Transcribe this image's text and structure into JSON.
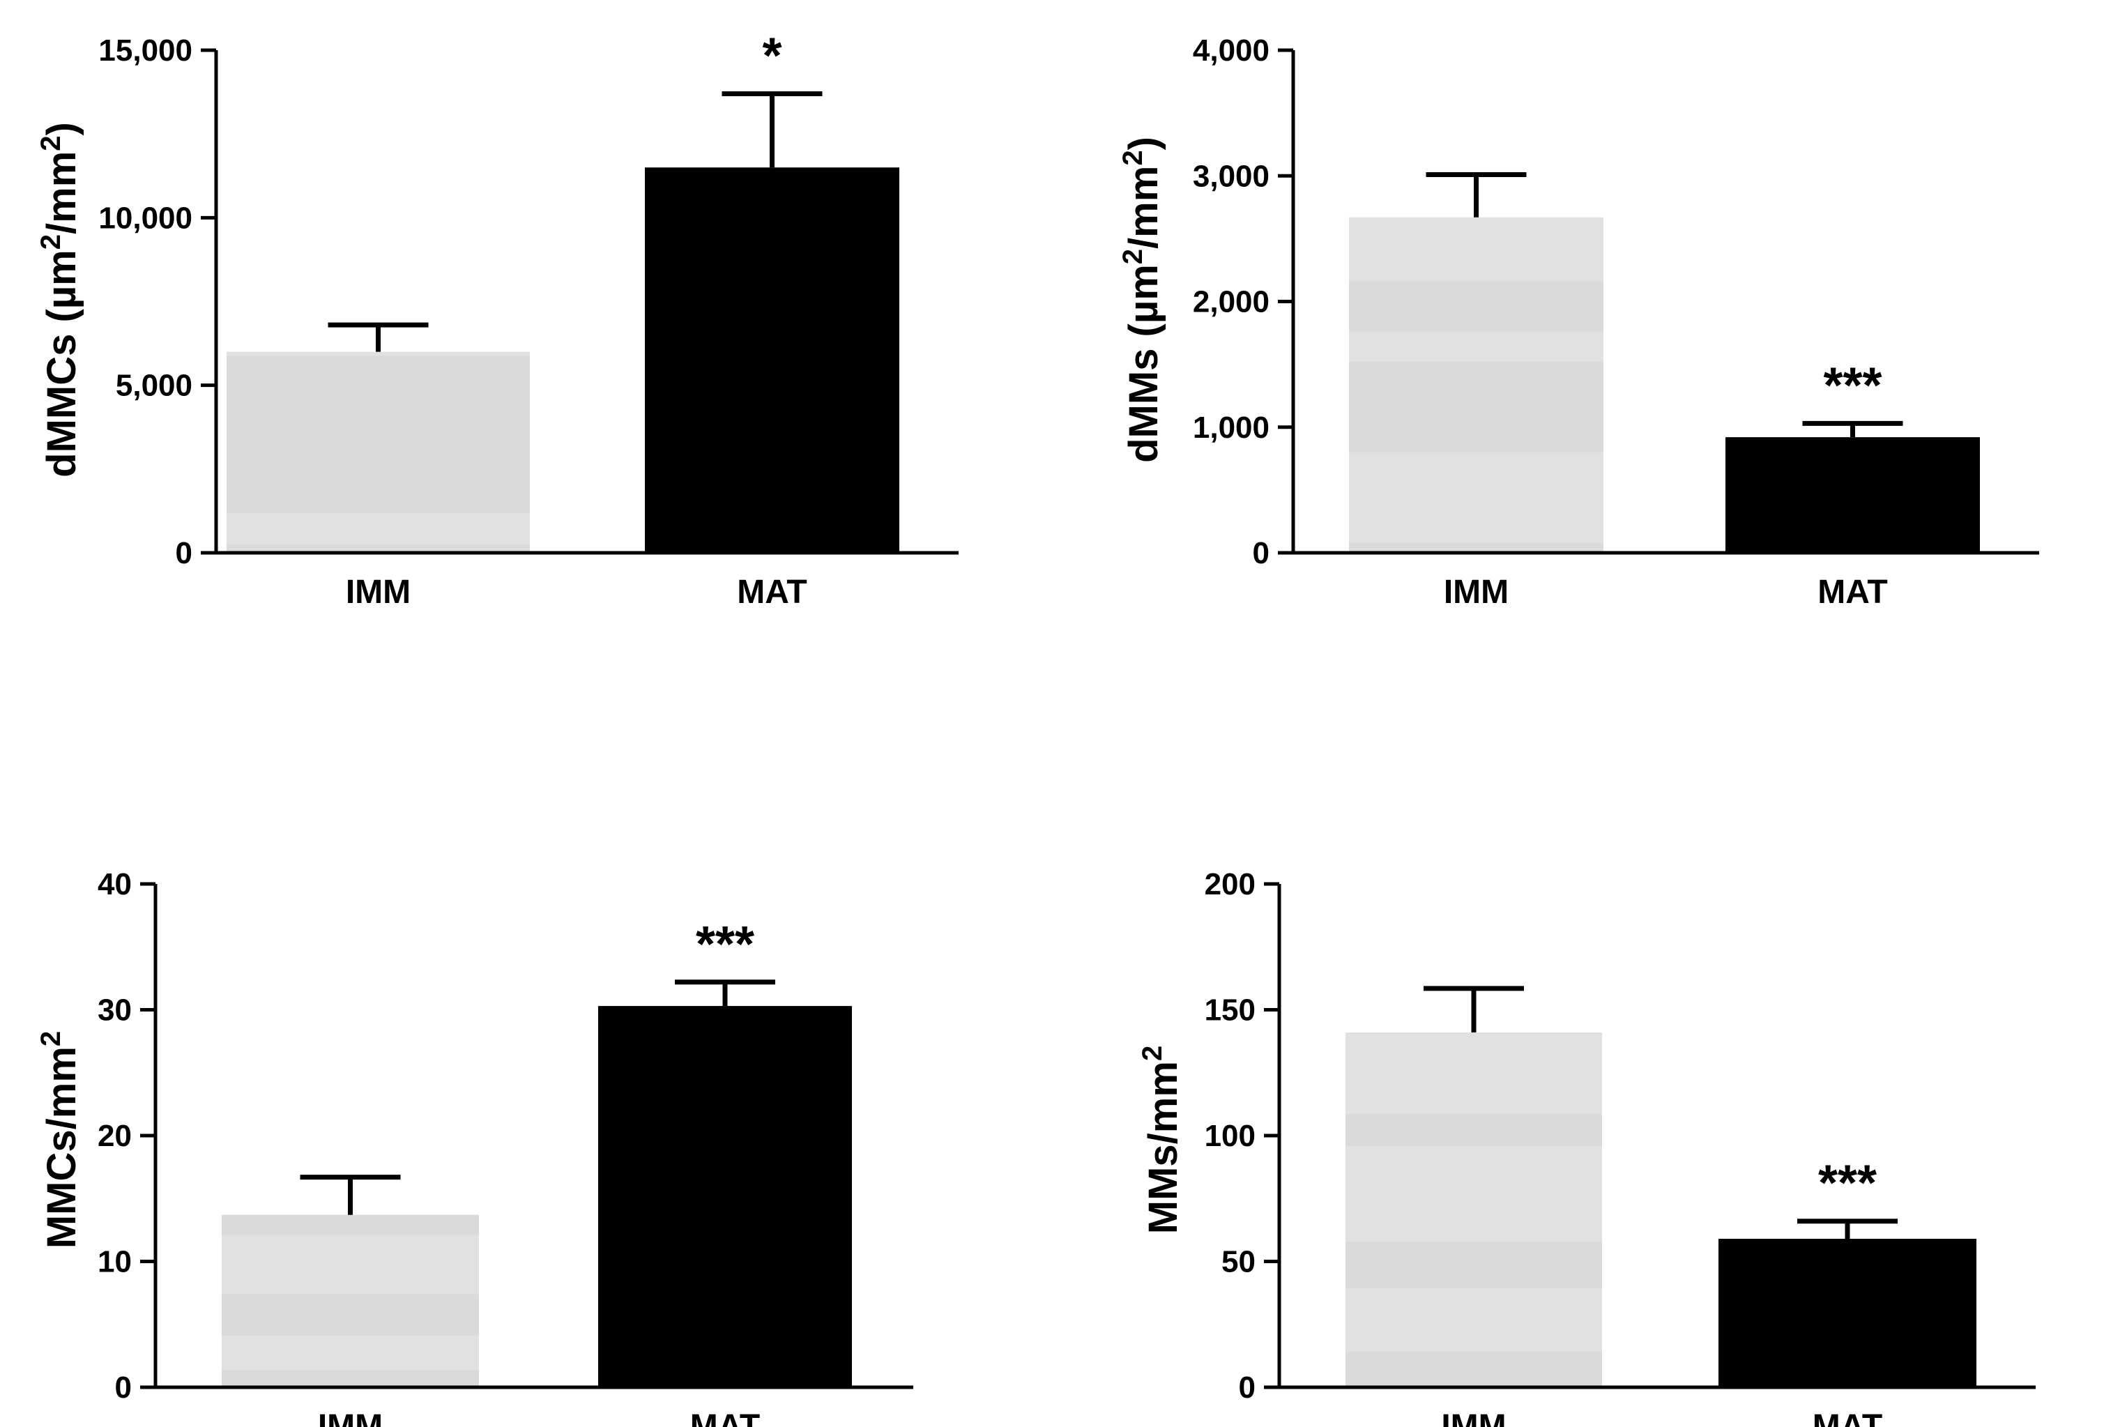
{
  "colors": {
    "imm_bar": "#e1e1e1",
    "imm_band": "#d5d5d5",
    "mat_bar": "#000000",
    "axis": "#000000"
  },
  "chart_data": [
    {
      "type": "bar",
      "categories": [
        "IMM",
        "MAT"
      ],
      "values": [
        6000,
        11500
      ],
      "errors": [
        800,
        2200
      ],
      "significance": [
        "",
        "*"
      ],
      "ylim": [
        0,
        15000
      ],
      "yticks": [
        0,
        5000,
        10000,
        15000
      ],
      "ytick_labels": [
        "0",
        "5,000",
        "10,000",
        "15,000"
      ],
      "ylabel_parts": [
        "dMMCs (µm",
        "2",
        "/mm",
        "2",
        ")"
      ],
      "xlabel": ""
    },
    {
      "type": "bar",
      "categories": [
        "IMM",
        "MAT"
      ],
      "values": [
        2670,
        920
      ],
      "errors": [
        340,
        110
      ],
      "significance": [
        "",
        "***"
      ],
      "ylim": [
        0,
        4000
      ],
      "yticks": [
        0,
        1000,
        2000,
        3000,
        4000
      ],
      "ytick_labels": [
        "0",
        "1,000",
        "2,000",
        "3,000",
        "4,000"
      ],
      "ylabel_parts": [
        "dMMs (µm",
        "2",
        "/mm",
        "2",
        ")"
      ],
      "xlabel": ""
    },
    {
      "type": "bar",
      "categories": [
        "IMM",
        "MAT"
      ],
      "values": [
        13.7,
        30.3
      ],
      "errors": [
        3.0,
        1.9
      ],
      "significance": [
        "",
        "***"
      ],
      "ylim": [
        0,
        40
      ],
      "yticks": [
        0,
        10,
        20,
        30,
        40
      ],
      "ytick_labels": [
        "0",
        "10",
        "20",
        "30",
        "40"
      ],
      "ylabel_parts": [
        "MMCs/mm",
        "2",
        "",
        "",
        ""
      ],
      "xlabel": ""
    },
    {
      "type": "bar",
      "categories": [
        "IMM",
        "MAT"
      ],
      "values": [
        141,
        59
      ],
      "errors": [
        17.5,
        7
      ],
      "significance": [
        "",
        "***"
      ],
      "ylim": [
        0,
        200
      ],
      "yticks": [
        0,
        50,
        100,
        150,
        200
      ],
      "ytick_labels": [
        "0",
        "50",
        "100",
        "150",
        "200"
      ],
      "ylabel_parts": [
        "MMs/mm",
        "2",
        "",
        "",
        ""
      ],
      "xlabel": ""
    }
  ]
}
